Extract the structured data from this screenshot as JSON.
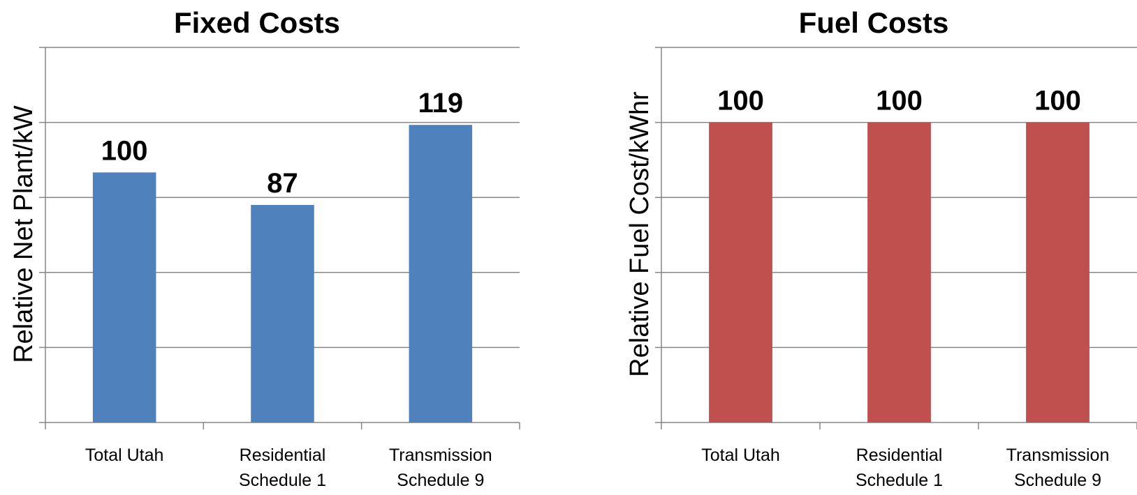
{
  "chart_data": [
    {
      "type": "bar",
      "title": "Fixed Costs",
      "ylabel": "Relative Net Plant/kW",
      "categories": [
        [
          "Total Utah"
        ],
        [
          "Residential",
          "Schedule 1"
        ],
        [
          "Transmission",
          "Schedule 9"
        ]
      ],
      "values": [
        100,
        87,
        119
      ],
      "data_labels": [
        "100",
        "87",
        "119"
      ],
      "ylim": [
        0,
        150
      ],
      "gridlines": 5,
      "grid": true,
      "y_tick_labels_shown": false,
      "bar_color": "#4F81BD"
    },
    {
      "type": "bar",
      "title": "Fuel Costs",
      "ylabel": "Relative Fuel Cost/kWhr",
      "categories": [
        [
          "Total Utah"
        ],
        [
          "Residential",
          "Schedule 1"
        ],
        [
          "Transmission",
          "Schedule 9"
        ]
      ],
      "values": [
        100,
        100,
        100
      ],
      "data_labels": [
        "100",
        "100",
        "100"
      ],
      "ylim": [
        0,
        125
      ],
      "gridlines": 5,
      "grid": true,
      "y_tick_labels_shown": false,
      "bar_color": "#C0504D"
    }
  ]
}
